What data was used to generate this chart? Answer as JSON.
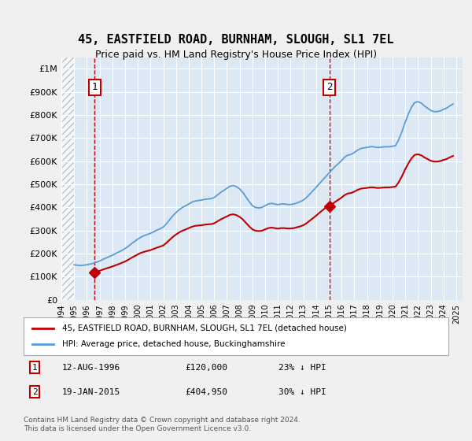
{
  "title": "45, EASTFIELD ROAD, BURNHAM, SLOUGH, SL1 7EL",
  "subtitle": "Price paid vs. HM Land Registry's House Price Index (HPI)",
  "title_fontsize": 11,
  "subtitle_fontsize": 9,
  "background_color": "#dce9f5",
  "plot_bg_color": "#dce9f5",
  "ylim": [
    0,
    1050000
  ],
  "xlim_start": 1994.0,
  "xlim_end": 2025.5,
  "yticks": [
    0,
    100000,
    200000,
    300000,
    400000,
    500000,
    600000,
    700000,
    800000,
    900000,
    1000000
  ],
  "ytick_labels": [
    "£0",
    "£100K",
    "£200K",
    "£300K",
    "£400K",
    "£500K",
    "£600K",
    "£700K",
    "£800K",
    "£900K",
    "£1M"
  ],
  "xticks": [
    1994,
    1995,
    1996,
    1997,
    1998,
    1999,
    2000,
    2001,
    2002,
    2003,
    2004,
    2005,
    2006,
    2007,
    2008,
    2009,
    2010,
    2011,
    2012,
    2013,
    2014,
    2015,
    2016,
    2017,
    2018,
    2019,
    2020,
    2021,
    2022,
    2023,
    2024,
    2025
  ],
  "hpi_color": "#5b9bd5",
  "price_color": "#c00000",
  "hatch_color": "#c0c0c0",
  "sale1_year": 1996.616,
  "sale1_price": 120000,
  "sale2_year": 2015.054,
  "sale2_price": 404950,
  "marker1_label": "1",
  "marker2_label": "2",
  "legend_label_price": "45, EASTFIELD ROAD, BURNHAM, SLOUGH, SL1 7EL (detached house)",
  "legend_label_hpi": "HPI: Average price, detached house, Buckinghamshire",
  "annotation1": "1   12-AUG-1996   £120,000   23% ↓ HPI",
  "annotation2": "2   19-JAN-2015   £404,950   30% ↓ HPI",
  "footer": "Contains HM Land Registry data © Crown copyright and database right 2024.\nThis data is licensed under the Open Government Licence v3.0.",
  "hpi_data_x": [
    1995.0,
    1995.25,
    1995.5,
    1995.75,
    1996.0,
    1996.25,
    1996.5,
    1996.75,
    1997.0,
    1997.25,
    1997.5,
    1997.75,
    1998.0,
    1998.25,
    1998.5,
    1998.75,
    1999.0,
    1999.25,
    1999.5,
    1999.75,
    2000.0,
    2000.25,
    2000.5,
    2000.75,
    2001.0,
    2001.25,
    2001.5,
    2001.75,
    2002.0,
    2002.25,
    2002.5,
    2002.75,
    2003.0,
    2003.25,
    2003.5,
    2003.75,
    2004.0,
    2004.25,
    2004.5,
    2004.75,
    2005.0,
    2005.25,
    2005.5,
    2005.75,
    2006.0,
    2006.25,
    2006.5,
    2006.75,
    2007.0,
    2007.25,
    2007.5,
    2007.75,
    2008.0,
    2008.25,
    2008.5,
    2008.75,
    2009.0,
    2009.25,
    2009.5,
    2009.75,
    2010.0,
    2010.25,
    2010.5,
    2010.75,
    2011.0,
    2011.25,
    2011.5,
    2011.75,
    2012.0,
    2012.25,
    2012.5,
    2012.75,
    2013.0,
    2013.25,
    2013.5,
    2013.75,
    2014.0,
    2014.25,
    2014.5,
    2014.75,
    2015.0,
    2015.25,
    2015.5,
    2015.75,
    2016.0,
    2016.25,
    2016.5,
    2016.75,
    2017.0,
    2017.25,
    2017.5,
    2017.75,
    2018.0,
    2018.25,
    2018.5,
    2018.75,
    2019.0,
    2019.25,
    2019.5,
    2019.75,
    2020.0,
    2020.25,
    2020.5,
    2020.75,
    2021.0,
    2021.25,
    2021.5,
    2021.75,
    2022.0,
    2022.25,
    2022.5,
    2022.75,
    2023.0,
    2023.25,
    2023.5,
    2023.75,
    2024.0,
    2024.25,
    2024.5,
    2024.75
  ],
  "hpi_data_y": [
    152000,
    150000,
    149000,
    150000,
    152000,
    155000,
    158000,
    163000,
    168000,
    175000,
    181000,
    187000,
    193000,
    200000,
    207000,
    214000,
    222000,
    232000,
    243000,
    253000,
    263000,
    272000,
    278000,
    283000,
    288000,
    295000,
    302000,
    308000,
    315000,
    330000,
    347000,
    364000,
    378000,
    390000,
    400000,
    407000,
    415000,
    423000,
    428000,
    430000,
    432000,
    435000,
    437000,
    438000,
    443000,
    454000,
    465000,
    474000,
    483000,
    492000,
    495000,
    490000,
    480000,
    465000,
    445000,
    425000,
    408000,
    400000,
    398000,
    400000,
    408000,
    415000,
    418000,
    415000,
    412000,
    415000,
    415000,
    413000,
    413000,
    415000,
    420000,
    425000,
    432000,
    443000,
    458000,
    472000,
    487000,
    503000,
    518000,
    533000,
    548000,
    563000,
    578000,
    590000,
    603000,
    618000,
    627000,
    630000,
    638000,
    648000,
    655000,
    658000,
    660000,
    663000,
    663000,
    660000,
    660000,
    662000,
    663000,
    663000,
    665000,
    668000,
    695000,
    730000,
    770000,
    805000,
    835000,
    855000,
    858000,
    852000,
    840000,
    830000,
    820000,
    815000,
    815000,
    818000,
    825000,
    830000,
    840000,
    848000
  ],
  "price_data_x": [
    1996.616,
    2015.054
  ],
  "price_data_y": [
    120000,
    404950
  ],
  "hatch_end_year": 1994.9
}
